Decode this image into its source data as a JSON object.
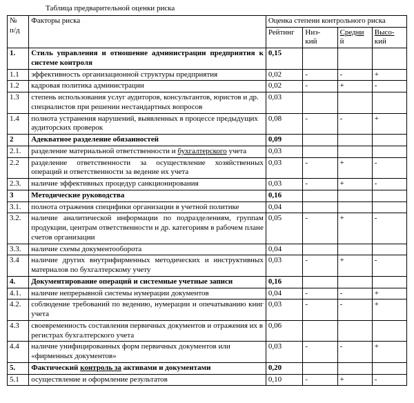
{
  "caption": "Таблица предварительной оценки риска",
  "headers": {
    "num_top": "№",
    "num_bottom": "п/д",
    "factors": "Факторы риска",
    "risk_assessment": "Оценка степени контрольного риска",
    "rating": "Рейтинг",
    "low_top": "Низ-",
    "low_bottom": "кий",
    "mid_top": "Средни",
    "mid_bottom": "й",
    "high_top": "Высо-",
    "high_bottom": "кий"
  },
  "rows": [
    {
      "num": "1.",
      "factor": "Стиль управления и отношение администрации предприятия к системе контроля",
      "rating": "0,15",
      "low": "",
      "mid": "",
      "high": "",
      "bold": true,
      "justify": true
    },
    {
      "num": "1.1",
      "factor": "эффективность организационной структуры предприятия",
      "rating": "0,02",
      "low": "-",
      "mid": "-",
      "high": "+"
    },
    {
      "num": "1.2",
      "factor": "кадровая политика администрации",
      "rating": "0,02",
      "low": "-",
      "mid": "+",
      "high": "-"
    },
    {
      "num": "1.3",
      "factor": "степень использования услуг аудиторов, консультантов, юристов и др. специалистов при решении нестандартных вопросов",
      "rating": "0,03",
      "low": "",
      "mid": "",
      "high": ""
    },
    {
      "num": "1.4",
      "factor": "полнота устранения нарушений, выявленных в процессе предыдущих аудиторских проверок",
      "rating": "0,08",
      "low": "-",
      "mid": "-",
      "high": "+"
    },
    {
      "num": "2",
      "factor": "Адекватное разделение обязанностей",
      "rating": "0,09",
      "low": "",
      "mid": "",
      "high": "",
      "bold": true
    },
    {
      "num": "2.1.",
      "factor": "разделение материальной ответственности и бухгалтерского учета",
      "rating": "0,03",
      "low": "",
      "mid": "",
      "high": "",
      "underline_tail": "бухгалтерского"
    },
    {
      "num": "2.2",
      "factor": "разделение ответственности за осуществление хозяйственных операций и ответственности за ведение их учета",
      "rating": "0,03",
      "low": "-",
      "mid": "+",
      "high": "-",
      "justify": true
    },
    {
      "num": "2.3.",
      "factor": "наличие эффективных процедур санкционирования",
      "rating": "0,03",
      "low": "-",
      "mid": "+",
      "high": "-"
    },
    {
      "num": "3",
      "factor": "Методические руководства",
      "rating": "0,16",
      "low": "",
      "mid": "",
      "high": "",
      "bold": true
    },
    {
      "num": "3.1.",
      "factor": "полнота отражения специфики организации в учетной политике",
      "rating": "0,04",
      "low": "",
      "mid": "",
      "high": "",
      "justify": true
    },
    {
      "num": "3.2.",
      "factor": "наличие аналитической информации по подразделениям, группам продукции, центрам ответственности и др. категориям в рабочем плане счетов организации",
      "rating": "0,05",
      "low": "-",
      "mid": "+",
      "high": "-",
      "justify": true
    },
    {
      "num": "3.3.",
      "factor": "наличие схемы документооборота",
      "rating": "0,04",
      "low": "",
      "mid": "",
      "high": ""
    },
    {
      "num": "3.4",
      "factor": "наличие других внутрифирменных методических и инструктивных материалов по бухгалтерскому учету",
      "rating": "0,03",
      "low": "-",
      "mid": "+",
      "high": "-",
      "justify": true
    },
    {
      "num": "4.",
      "factor": "Документирование операций и системные учетные записи",
      "rating": "0,16",
      "low": "",
      "mid": "",
      "high": "",
      "bold": true
    },
    {
      "num": "4.1.",
      "factor": "наличие непрерывной системы нумерации документов",
      "rating": "0,04",
      "low": "-",
      "mid": "-",
      "high": "+"
    },
    {
      "num": "4.2.",
      "factor": "соблюдение требований по ведению, нумерации и опечатыванию книг учета",
      "rating": "0,03",
      "low": "-",
      "mid": "-",
      "high": "+",
      "justify": true
    },
    {
      "num": "4.3",
      "factor": "своевременность составления первичных документов и отражения их в регистрах бухгалтерского учета",
      "rating": "0,06",
      "low": "",
      "mid": "",
      "high": ""
    },
    {
      "num": "4.4",
      "factor": "наличие унифицированных форм первичных документов или «фирменных документов»",
      "rating": "0,03",
      "low": "-",
      "mid": "-",
      "high": "+"
    },
    {
      "num": "5.",
      "factor": "Фактический контроль за активами и документами",
      "rating": "0,20",
      "low": "",
      "mid": "",
      "high": "",
      "bold": true,
      "underline_tail": "контроль за"
    },
    {
      "num": "5.1",
      "factor": "осуществление и оформление результатов",
      "rating": "0,10",
      "low": "-",
      "mid": "+",
      "high": "-"
    }
  ]
}
